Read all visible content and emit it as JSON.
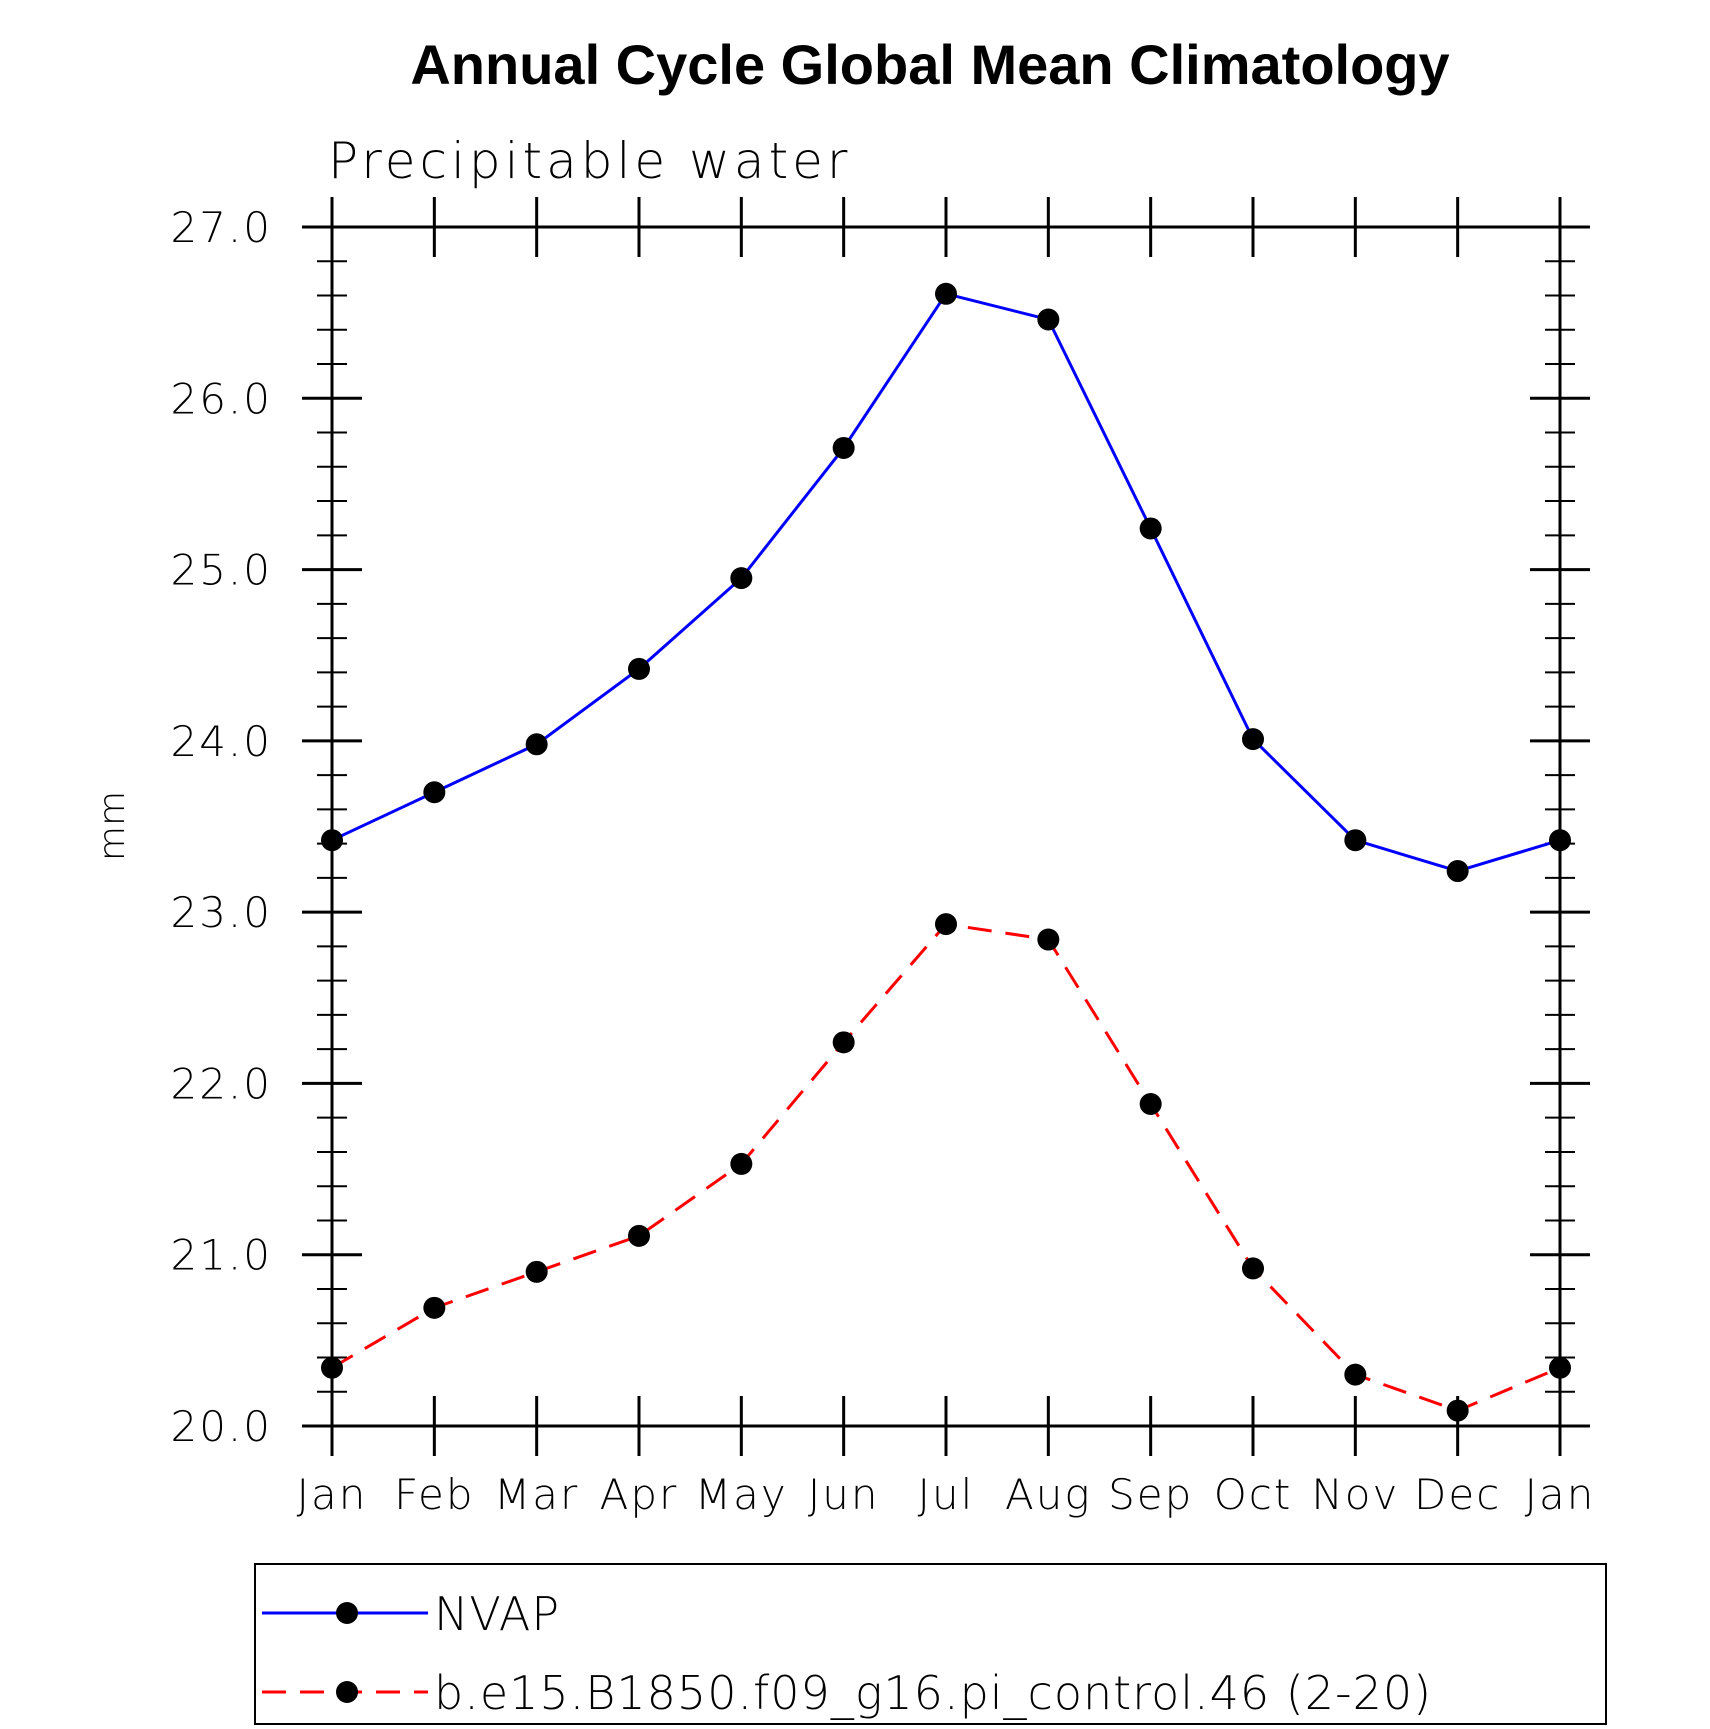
{
  "chart_data": {
    "type": "line",
    "title": "Annual Cycle Global Mean Climatology",
    "subtitle": "Precipitable water",
    "xlabel": "",
    "ylabel": "mm",
    "categories": [
      "Jan",
      "Feb",
      "Mar",
      "Apr",
      "May",
      "Jun",
      "Jul",
      "Aug",
      "Sep",
      "Oct",
      "Nov",
      "Dec",
      "Jan"
    ],
    "ylim": [
      20.0,
      27.0
    ],
    "yticks": [
      "20.0",
      "21.0",
      "22.0",
      "23.0",
      "24.0",
      "25.0",
      "26.0",
      "27.0"
    ],
    "grid": false,
    "legend_position": "bottom",
    "series": [
      {
        "name": "NVAP",
        "color": "#0000ff",
        "dashed": false,
        "values": [
          23.42,
          23.7,
          23.98,
          24.42,
          24.95,
          25.71,
          26.61,
          26.46,
          25.24,
          24.01,
          23.42,
          23.24,
          23.42
        ]
      },
      {
        "name": "b.e15.B1850.f09_g16.pi_control.46 (2-20)",
        "color": "#ff0000",
        "dashed": true,
        "values": [
          20.34,
          20.69,
          20.9,
          21.11,
          21.53,
          22.24,
          22.93,
          22.84,
          21.88,
          20.92,
          20.3,
          20.09,
          20.34
        ]
      }
    ]
  }
}
